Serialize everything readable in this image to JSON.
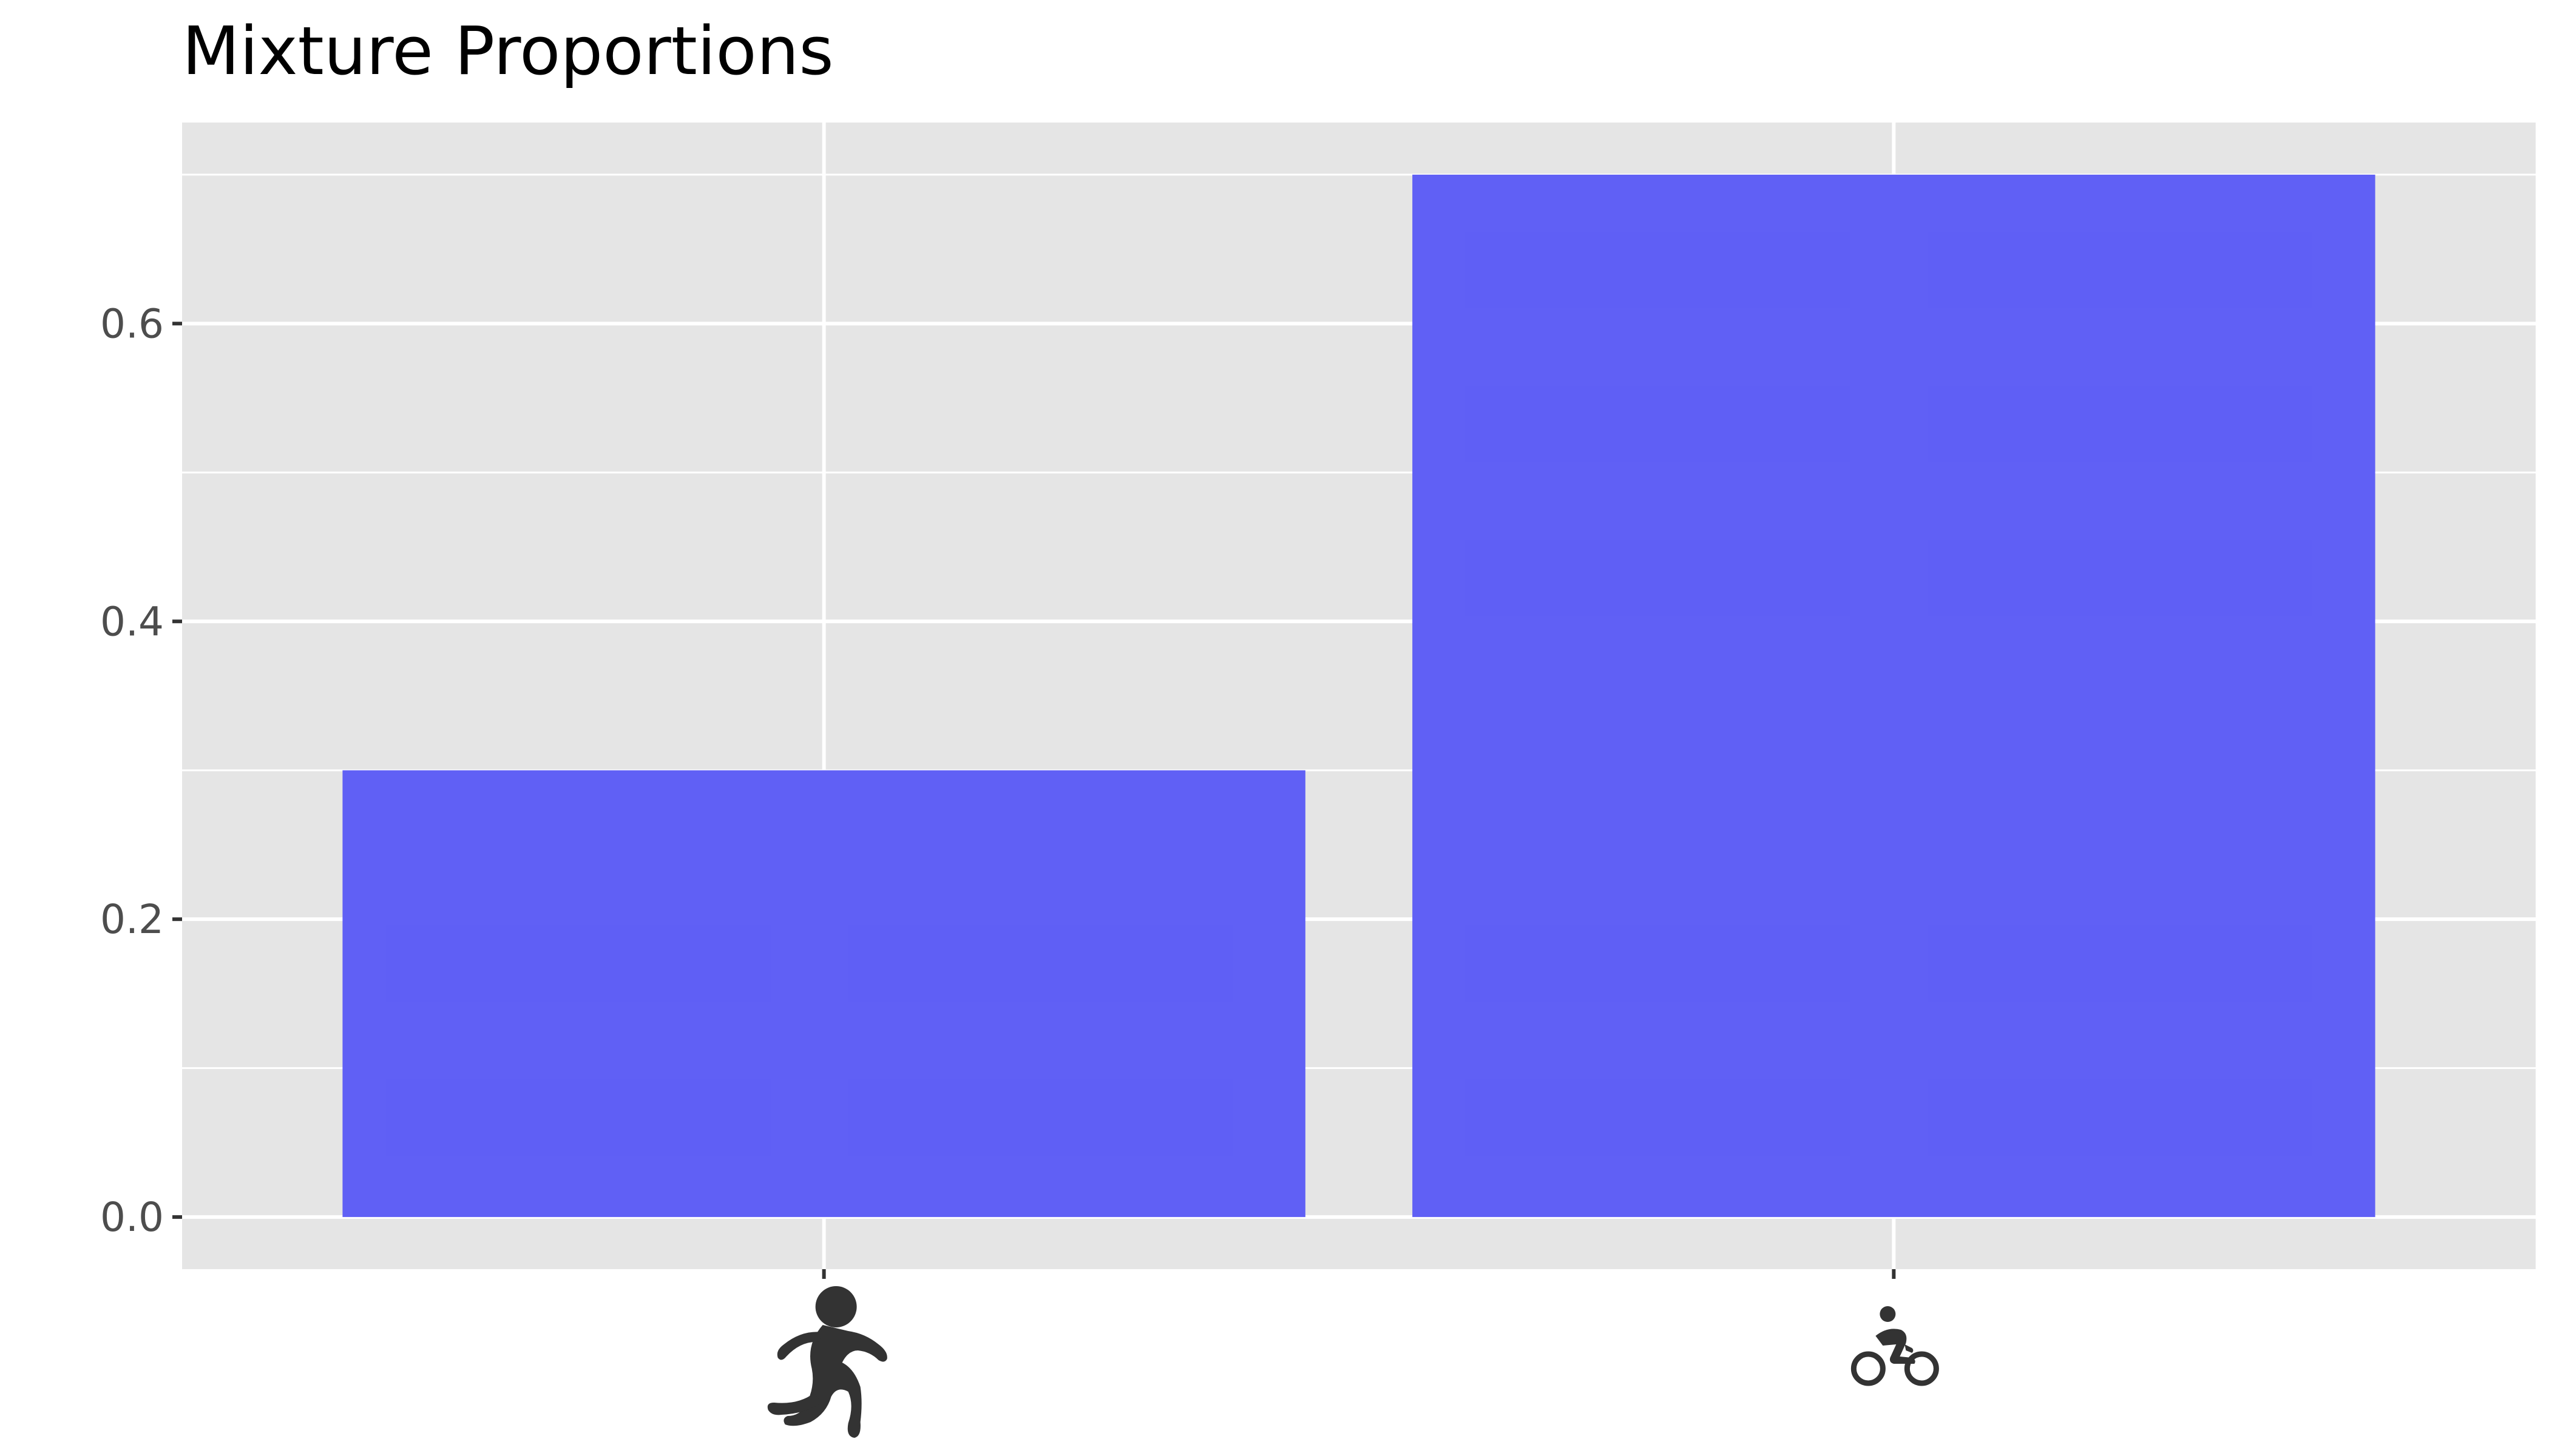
{
  "chart_data": {
    "type": "bar",
    "title": "Mixture Proportions",
    "xlabel": "",
    "ylabel": "",
    "categories": [
      "running-person-icon",
      "cyclist-icon"
    ],
    "values": [
      0.3,
      0.7
    ],
    "ylim": [
      -0.035,
      0.735
    ],
    "yticks": [
      0.0,
      0.2,
      0.4,
      0.6
    ],
    "ytick_labels": [
      "0.0",
      "0.2",
      "0.4",
      "0.6"
    ],
    "grid": true,
    "legend": "none",
    "colors": {
      "bar": "#5b5bf5",
      "panel": "#e5e5e5",
      "grid": "#ffffff",
      "tick_label": "#4d4d4d",
      "tick": "#333333",
      "icon": "#333333"
    }
  }
}
